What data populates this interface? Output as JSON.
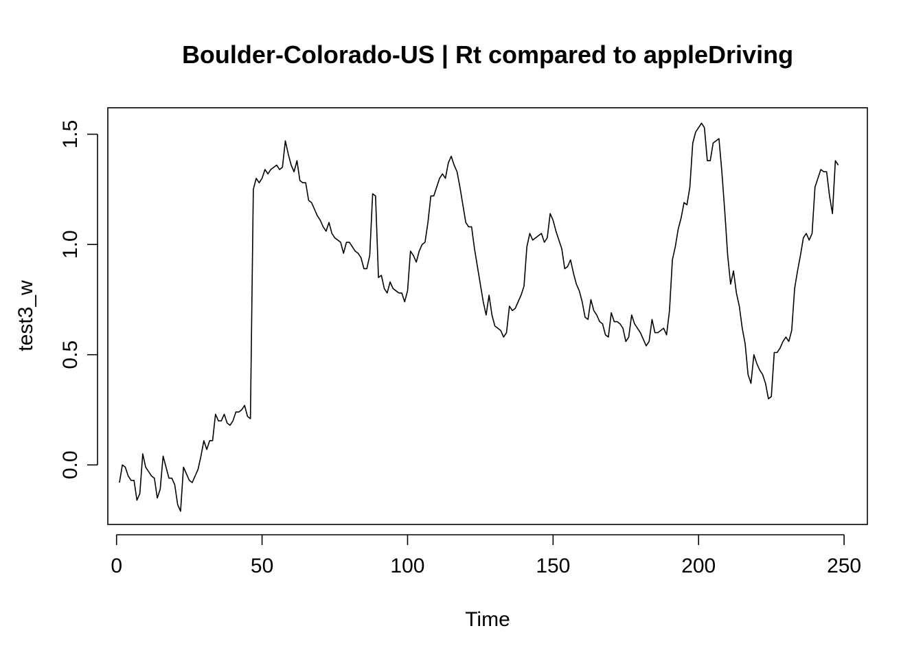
{
  "chart_data": {
    "type": "line",
    "title": "Boulder-Colorado-US | Rt compared to appleDriving",
    "xlabel": "Time",
    "ylabel": "test3_w",
    "xlim": [
      -3,
      258
    ],
    "ylim": [
      -0.27,
      1.62
    ],
    "x_ticks": [
      0,
      50,
      100,
      150,
      200,
      250
    ],
    "x_tick_labels": [
      "0",
      "50",
      "100",
      "150",
      "200",
      "250"
    ],
    "y_ticks": [
      0.0,
      0.5,
      1.0,
      1.5
    ],
    "y_tick_labels": [
      "0.0",
      "0.5",
      "1.0",
      "1.5"
    ],
    "grid": false,
    "series": [
      {
        "color": "#000000",
        "x_start": 1,
        "values": [
          -0.08,
          0.0,
          -0.01,
          -0.05,
          -0.07,
          -0.07,
          -0.16,
          -0.13,
          0.05,
          -0.01,
          -0.03,
          -0.05,
          -0.06,
          -0.15,
          -0.11,
          0.04,
          -0.01,
          -0.06,
          -0.06,
          -0.09,
          -0.18,
          -0.21,
          -0.01,
          -0.04,
          -0.07,
          -0.08,
          -0.05,
          -0.02,
          0.04,
          0.11,
          0.07,
          0.11,
          0.11,
          0.23,
          0.2,
          0.2,
          0.23,
          0.19,
          0.18,
          0.2,
          0.24,
          0.24,
          0.25,
          0.27,
          0.22,
          0.21,
          1.25,
          1.3,
          1.28,
          1.3,
          1.34,
          1.32,
          1.34,
          1.35,
          1.36,
          1.34,
          1.35,
          1.47,
          1.41,
          1.36,
          1.33,
          1.38,
          1.29,
          1.28,
          1.28,
          1.2,
          1.19,
          1.16,
          1.13,
          1.11,
          1.08,
          1.06,
          1.1,
          1.05,
          1.03,
          1.02,
          1.01,
          0.96,
          1.01,
          1.01,
          0.99,
          0.97,
          0.96,
          0.94,
          0.89,
          0.89,
          0.95,
          1.23,
          1.22,
          0.85,
          0.86,
          0.8,
          0.78,
          0.83,
          0.8,
          0.79,
          0.78,
          0.78,
          0.74,
          0.79,
          0.97,
          0.95,
          0.92,
          0.97,
          1.0,
          1.01,
          1.1,
          1.22,
          1.22,
          1.26,
          1.3,
          1.32,
          1.3,
          1.37,
          1.4,
          1.36,
          1.33,
          1.26,
          1.18,
          1.1,
          1.08,
          1.08,
          0.98,
          0.9,
          0.82,
          0.74,
          0.68,
          0.77,
          0.68,
          0.63,
          0.62,
          0.61,
          0.58,
          0.6,
          0.72,
          0.7,
          0.71,
          0.74,
          0.77,
          0.81,
          0.99,
          1.05,
          1.02,
          1.03,
          1.04,
          1.05,
          1.01,
          1.03,
          1.14,
          1.11,
          1.06,
          1.02,
          0.98,
          0.89,
          0.9,
          0.93,
          0.87,
          0.82,
          0.79,
          0.74,
          0.67,
          0.66,
          0.75,
          0.7,
          0.68,
          0.65,
          0.64,
          0.59,
          0.58,
          0.69,
          0.65,
          0.65,
          0.64,
          0.62,
          0.56,
          0.58,
          0.68,
          0.64,
          0.62,
          0.6,
          0.57,
          0.54,
          0.56,
          0.66,
          0.6,
          0.6,
          0.61,
          0.62,
          0.59,
          0.7,
          0.93,
          0.99,
          1.07,
          1.12,
          1.19,
          1.18,
          1.26,
          1.46,
          1.51,
          1.53,
          1.55,
          1.53,
          1.38,
          1.38,
          1.46,
          1.47,
          1.48,
          1.33,
          1.15,
          0.95,
          0.82,
          0.88,
          0.78,
          0.72,
          0.62,
          0.55,
          0.41,
          0.37,
          0.5,
          0.46,
          0.43,
          0.41,
          0.37,
          0.3,
          0.31,
          0.51,
          0.51,
          0.53,
          0.56,
          0.58,
          0.56,
          0.61,
          0.8,
          0.88,
          0.95,
          1.03,
          1.05,
          1.02,
          1.05,
          1.26,
          1.3,
          1.34,
          1.33,
          1.33,
          1.22,
          1.14,
          1.38,
          1.36
        ]
      }
    ]
  }
}
